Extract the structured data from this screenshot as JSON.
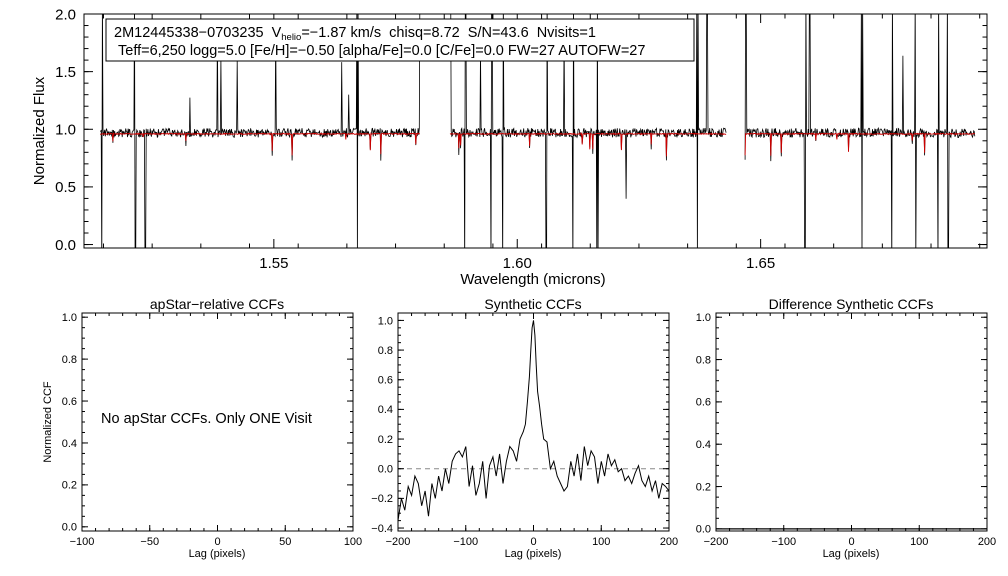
{
  "colors": {
    "axis": "#000000",
    "observed": "#000000",
    "model": "#cc0000",
    "zero_line": "#888888"
  },
  "info_box": {
    "line1": {
      "id": "2M12445338−0703235",
      "v_label": "V",
      "v_sub": "helio",
      "rest": "=−1.87 km/s  chisq=8.72  S/N=43.6  Nvisits=1"
    },
    "line2": "Teff=6,250 logg=5.0 [Fe/H]=−0.50 [alpha/Fe]=0.0 [C/Fe]=0.0 FW=27 AUTOFW=27"
  },
  "chart_data": [
    {
      "type": "line",
      "title": "",
      "xlabel": "Wavelength (microns)",
      "ylabel": "Normalized Flux",
      "xlim": [
        1.511,
        1.6965
      ],
      "ylim": [
        -0.03,
        2.0
      ],
      "xticks": [
        1.55,
        1.6,
        1.65
      ],
      "xtick_labels": [
        "1.55",
        "1.60",
        "1.65"
      ],
      "yticks": [
        0.0,
        0.5,
        1.0,
        1.5,
        2.0
      ],
      "ytick_labels": [
        "0.0",
        "0.5",
        "1.0",
        "1.5",
        "2.0"
      ],
      "chips": [
        [
          1.5143,
          1.58
        ],
        [
          1.5862,
          1.6429
        ],
        [
          1.6468,
          1.694
        ]
      ],
      "continuum": 0.97,
      "series": [
        {
          "name": "observed spectrum",
          "color": "#000000"
        },
        {
          "name": "best-fit model",
          "color": "#cc0000"
        }
      ]
    },
    {
      "type": "line",
      "title": "apStar−relative CCFs",
      "xlabel": "Lag (pixels)",
      "ylabel": "Normalized CCF",
      "xlim": [
        -100,
        100
      ],
      "ylim": [
        -0.02,
        1.02
      ],
      "xticks": [
        -100,
        -50,
        0,
        50,
        100
      ],
      "xtick_labels": [
        "−100",
        "−50",
        "0",
        "50",
        "100"
      ],
      "yticks": [
        0.0,
        0.2,
        0.4,
        0.6,
        0.8,
        1.0
      ],
      "ytick_labels": [
        "0.0",
        "0.2",
        "0.4",
        "0.6",
        "0.8",
        "1.0"
      ],
      "annotation": "No apStar CCFs.  Only ONE Visit",
      "series": []
    },
    {
      "type": "line",
      "title": "Synthetic CCFs",
      "xlabel": "Lag (pixels)",
      "ylabel": "",
      "xlim": [
        -200,
        200
      ],
      "ylim": [
        -0.42,
        1.05
      ],
      "xticks": [
        -200,
        -100,
        0,
        100,
        200
      ],
      "xtick_labels": [
        "−200",
        "−100",
        "0",
        "100",
        "200"
      ],
      "yticks": [
        -0.4,
        -0.2,
        0.0,
        0.2,
        0.4,
        0.6,
        0.8,
        1.0
      ],
      "ytick_labels": [
        "−0.4",
        "−0.2",
        "0.0",
        "0.2",
        "0.4",
        "0.6",
        "0.8",
        "1.0"
      ],
      "reference_line": 0.0,
      "series": [
        {
          "name": "synthetic CCF",
          "x": [
            -200,
            -195,
            -190,
            -185,
            -180,
            -175,
            -170,
            -165,
            -160,
            -155,
            -150,
            -145,
            -140,
            -135,
            -130,
            -125,
            -120,
            -115,
            -110,
            -105,
            -100,
            -95,
            -90,
            -85,
            -80,
            -75,
            -70,
            -65,
            -60,
            -55,
            -50,
            -45,
            -40,
            -35,
            -30,
            -25,
            -20,
            -15,
            -12,
            -9,
            -6,
            -4,
            -2,
            0,
            2,
            4,
            6,
            9,
            12,
            15,
            20,
            25,
            30,
            35,
            40,
            45,
            50,
            55,
            60,
            65,
            70,
            75,
            80,
            85,
            90,
            95,
            100,
            105,
            110,
            115,
            120,
            125,
            130,
            135,
            140,
            145,
            150,
            155,
            160,
            165,
            170,
            175,
            180,
            185,
            190,
            195,
            200
          ],
          "y": [
            -0.35,
            -0.2,
            -0.28,
            -0.12,
            -0.18,
            -0.05,
            -0.1,
            -0.25,
            -0.15,
            -0.32,
            -0.1,
            -0.2,
            -0.05,
            -0.15,
            0.0,
            -0.1,
            0.05,
            0.1,
            0.12,
            0.08,
            0.15,
            -0.12,
            0.02,
            -0.18,
            -0.1,
            0.05,
            -0.2,
            0.02,
            0.08,
            -0.05,
            0.1,
            -0.1,
            0.05,
            0.15,
            0.12,
            0.05,
            0.2,
            0.25,
            0.3,
            0.45,
            0.62,
            0.8,
            0.95,
            1.0,
            0.9,
            0.7,
            0.52,
            0.42,
            0.3,
            0.2,
            0.18,
            0.0,
            0.05,
            -0.05,
            -0.1,
            -0.15,
            -0.12,
            0.05,
            -0.05,
            0.1,
            -0.08,
            0.15,
            0.02,
            0.12,
            0.08,
            -0.1,
            0.05,
            -0.05,
            0.1,
            0.02,
            0.06,
            -0.02,
            0.0,
            -0.08,
            -0.05,
            -0.1,
            -0.03,
            0.02,
            -0.08,
            -0.12,
            -0.05,
            -0.15,
            -0.08,
            -0.2,
            -0.1,
            -0.12,
            -0.15
          ]
        }
      ]
    },
    {
      "type": "line",
      "title": "Difference Synthetic CCFs",
      "xlabel": "Lag (pixels)",
      "ylabel": "",
      "xlim": [
        -200,
        200
      ],
      "ylim": [
        -0.01,
        1.02
      ],
      "xticks": [
        -200,
        -100,
        0,
        100,
        200
      ],
      "xtick_labels": [
        "−200",
        "−100",
        "0",
        "100",
        "200"
      ],
      "yticks": [
        0.0,
        0.2,
        0.4,
        0.6,
        0.8,
        1.0
      ],
      "ytick_labels": [
        "0.0",
        "0.2",
        "0.4",
        "0.6",
        "0.8",
        "1.0"
      ],
      "series": [
        {
          "name": "difference CCF",
          "x": [
            -200,
            200
          ],
          "y": [
            0.0,
            0.0
          ]
        }
      ]
    }
  ]
}
